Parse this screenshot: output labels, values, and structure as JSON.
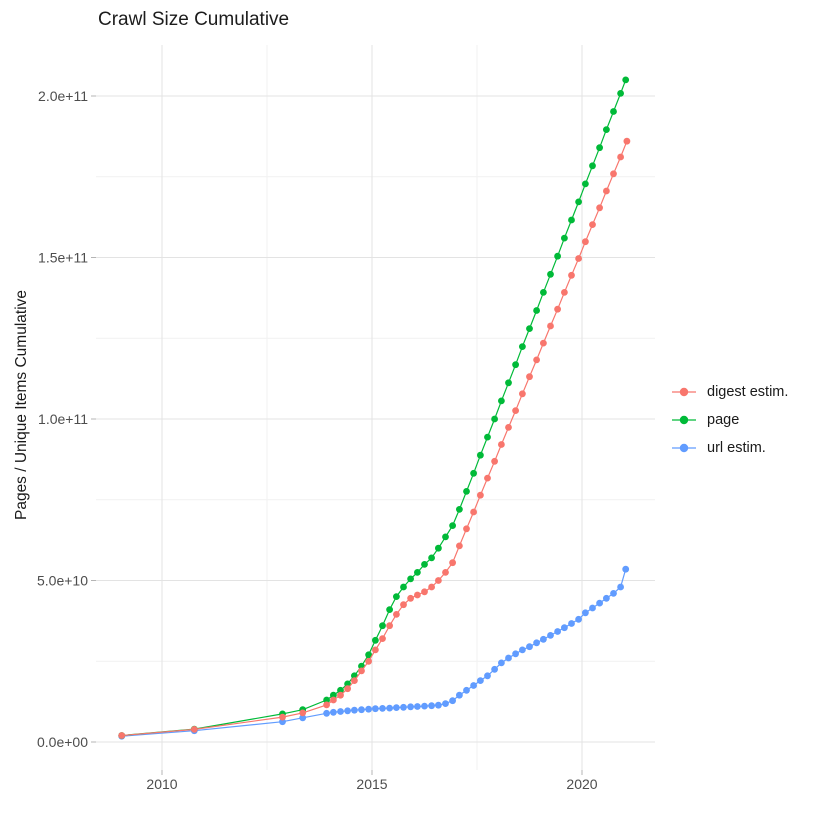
{
  "title": "Crawl Size Cumulative",
  "chart_data": {
    "type": "line",
    "title": "Crawl Size Cumulative",
    "xlabel": "",
    "ylabel": "Pages / Unique Items Cumulative",
    "value_unit": "items, value field is in billions (1e9)",
    "x_range_years": [
      2008.4,
      2021.7
    ],
    "y_range": [
      0,
      215000000000.0
    ],
    "grid": "on",
    "legend_position": "right",
    "x_ticks": [
      {
        "label": "2010",
        "year": 2010
      },
      {
        "label": "2015",
        "year": 2015
      },
      {
        "label": "2020",
        "year": 2020
      }
    ],
    "x_minor_years": [
      2012.5,
      2017.5
    ],
    "y_ticks": [
      {
        "label": "0.0e+00",
        "value": 0
      },
      {
        "label": "5.0e+10",
        "value": 50
      },
      {
        "label": "1.0e+11",
        "value": 100
      },
      {
        "label": "1.5e+11",
        "value": 150
      },
      {
        "label": "2.0e+11",
        "value": 200
      }
    ],
    "y_minor_values": [
      25,
      75,
      125,
      175
    ],
    "series": [
      {
        "name": "digest estim.",
        "color": "#F8766D",
        "points": [
          [
            2009.04,
            2
          ],
          [
            2010.77,
            3.9
          ],
          [
            2012.87,
            7.7
          ],
          [
            2013.35,
            9
          ],
          [
            2013.92,
            11.5
          ],
          [
            2014.08,
            13
          ],
          [
            2014.25,
            14.5
          ],
          [
            2014.42,
            16.5
          ],
          [
            2014.58,
            19
          ],
          [
            2014.75,
            22
          ],
          [
            2014.92,
            25
          ],
          [
            2015.08,
            28.5
          ],
          [
            2015.25,
            32
          ],
          [
            2015.42,
            36
          ],
          [
            2015.58,
            39.5
          ],
          [
            2015.75,
            42.5
          ],
          [
            2015.92,
            44.5
          ],
          [
            2016.08,
            45.5
          ],
          [
            2016.25,
            46.5
          ],
          [
            2016.42,
            48
          ],
          [
            2016.58,
            50
          ],
          [
            2016.75,
            52.5
          ],
          [
            2016.92,
            55.5
          ],
          [
            2017.08,
            60.7
          ],
          [
            2017.25,
            66
          ],
          [
            2017.42,
            71.2
          ],
          [
            2017.58,
            76.4
          ],
          [
            2017.75,
            81.7
          ],
          [
            2017.92,
            86.9
          ],
          [
            2018.08,
            92.1
          ],
          [
            2018.25,
            97.4
          ],
          [
            2018.42,
            102.6
          ],
          [
            2018.58,
            107.8
          ],
          [
            2018.75,
            113.1
          ],
          [
            2018.92,
            118.3
          ],
          [
            2019.08,
            123.5
          ],
          [
            2019.25,
            128.8
          ],
          [
            2019.42,
            134
          ],
          [
            2019.58,
            139.2
          ],
          [
            2019.75,
            144.5
          ],
          [
            2019.92,
            149.7
          ],
          [
            2020.08,
            154.9
          ],
          [
            2020.25,
            160.2
          ],
          [
            2020.42,
            165.4
          ],
          [
            2020.58,
            170.6
          ],
          [
            2020.75,
            175.9
          ],
          [
            2020.92,
            181.1
          ],
          [
            2021.07,
            186
          ]
        ]
      },
      {
        "name": "page",
        "color": "#00BA38",
        "points": [
          [
            2009.04,
            2
          ],
          [
            2010.77,
            4
          ],
          [
            2012.87,
            8.7
          ],
          [
            2013.35,
            10
          ],
          [
            2013.92,
            13
          ],
          [
            2014.08,
            14.5
          ],
          [
            2014.25,
            16
          ],
          [
            2014.42,
            18
          ],
          [
            2014.58,
            20.5
          ],
          [
            2014.75,
            23.5
          ],
          [
            2014.92,
            27
          ],
          [
            2015.08,
            31.5
          ],
          [
            2015.25,
            36
          ],
          [
            2015.42,
            41
          ],
          [
            2015.58,
            45
          ],
          [
            2015.75,
            48
          ],
          [
            2015.92,
            50.5
          ],
          [
            2016.08,
            52.5
          ],
          [
            2016.25,
            55
          ],
          [
            2016.42,
            57
          ],
          [
            2016.58,
            60
          ],
          [
            2016.75,
            63.5
          ],
          [
            2016.92,
            67
          ],
          [
            2017.08,
            72
          ],
          [
            2017.25,
            77.6
          ],
          [
            2017.42,
            83.2
          ],
          [
            2017.58,
            88.8
          ],
          [
            2017.75,
            94.4
          ],
          [
            2017.92,
            100
          ],
          [
            2018.08,
            105.6
          ],
          [
            2018.25,
            111.2
          ],
          [
            2018.42,
            116.8
          ],
          [
            2018.58,
            122.4
          ],
          [
            2018.75,
            128
          ],
          [
            2018.92,
            133.6
          ],
          [
            2019.08,
            139.2
          ],
          [
            2019.25,
            144.8
          ],
          [
            2019.42,
            150.4
          ],
          [
            2019.58,
            156
          ],
          [
            2019.75,
            161.6
          ],
          [
            2019.92,
            167.2
          ],
          [
            2020.08,
            172.8
          ],
          [
            2020.25,
            178.4
          ],
          [
            2020.42,
            184
          ],
          [
            2020.58,
            189.6
          ],
          [
            2020.75,
            195.2
          ],
          [
            2020.92,
            200.8
          ],
          [
            2021.04,
            205
          ]
        ]
      },
      {
        "name": "url estim.",
        "color": "#619CFF",
        "points": [
          [
            2009.04,
            1.8
          ],
          [
            2010.77,
            3.5
          ],
          [
            2012.87,
            6.3
          ],
          [
            2013.35,
            7.5
          ],
          [
            2013.92,
            8.9
          ],
          [
            2014.08,
            9.2
          ],
          [
            2014.25,
            9.45
          ],
          [
            2014.42,
            9.65
          ],
          [
            2014.58,
            9.85
          ],
          [
            2014.75,
            10
          ],
          [
            2014.92,
            10.15
          ],
          [
            2015.08,
            10.3
          ],
          [
            2015.25,
            10.4
          ],
          [
            2015.42,
            10.5
          ],
          [
            2015.58,
            10.65
          ],
          [
            2015.75,
            10.75
          ],
          [
            2015.92,
            10.9
          ],
          [
            2016.08,
            11
          ],
          [
            2016.25,
            11.1
          ],
          [
            2016.42,
            11.25
          ],
          [
            2016.58,
            11.4
          ],
          [
            2016.75,
            11.9
          ],
          [
            2016.92,
            12.8
          ],
          [
            2017.08,
            14.5
          ],
          [
            2017.25,
            16
          ],
          [
            2017.42,
            17.5
          ],
          [
            2017.58,
            19
          ],
          [
            2017.75,
            20.5
          ],
          [
            2017.92,
            22.5
          ],
          [
            2018.08,
            24.5
          ],
          [
            2018.25,
            26
          ],
          [
            2018.42,
            27.3
          ],
          [
            2018.58,
            28.5
          ],
          [
            2018.75,
            29.5
          ],
          [
            2018.92,
            30.7
          ],
          [
            2019.08,
            31.8
          ],
          [
            2019.25,
            33
          ],
          [
            2019.42,
            34.2
          ],
          [
            2019.58,
            35.4
          ],
          [
            2019.75,
            36.7
          ],
          [
            2019.92,
            38
          ],
          [
            2020.08,
            40
          ],
          [
            2020.25,
            41.5
          ],
          [
            2020.42,
            43
          ],
          [
            2020.58,
            44.5
          ],
          [
            2020.75,
            46
          ],
          [
            2020.92,
            48
          ],
          [
            2021.04,
            53.5
          ]
        ]
      }
    ],
    "legend_items": [
      "digest estim.",
      "page",
      "url estim."
    ]
  },
  "colors": {
    "grid_major": "#e3e3e3",
    "grid_minor": "#f1f1f1",
    "tick_mark": "#b4b4b4",
    "tick_text": "#4d4d4d",
    "title_text": "#1c1c1c"
  }
}
